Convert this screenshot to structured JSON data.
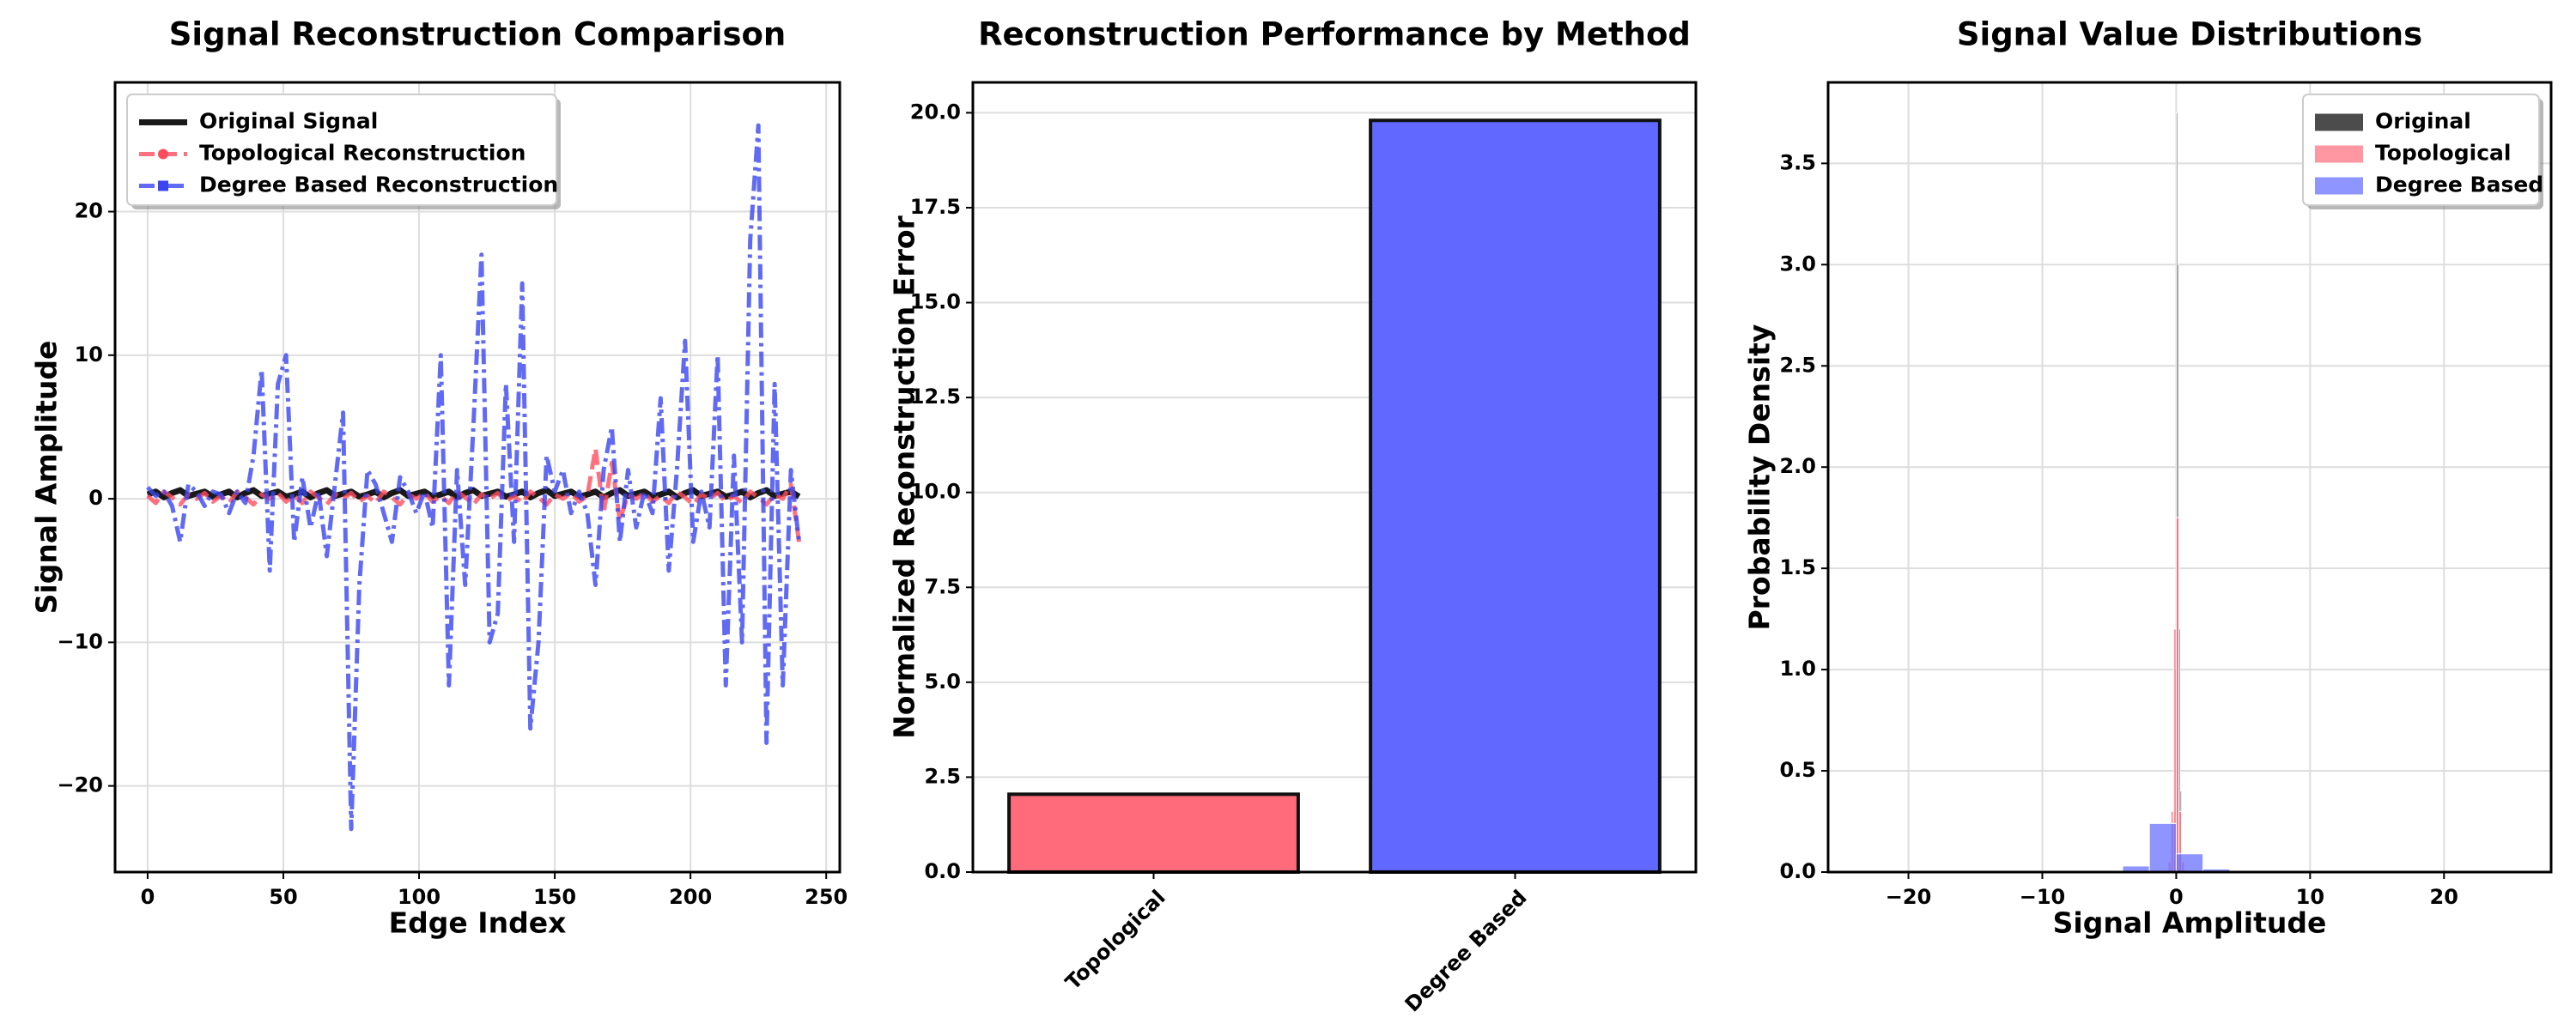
{
  "chart_data": [
    {
      "type": "line",
      "title": "Signal Reconstruction Comparison",
      "xlabel": "Edge Index",
      "ylabel": "Signal Amplitude",
      "x": [
        0,
        3,
        6,
        9,
        12,
        15,
        18,
        21,
        24,
        27,
        30,
        33,
        36,
        39,
        42,
        45,
        48,
        51,
        54,
        57,
        60,
        63,
        66,
        69,
        72,
        75,
        78,
        81,
        84,
        87,
        90,
        93,
        96,
        99,
        102,
        105,
        108,
        111,
        114,
        117,
        120,
        123,
        126,
        129,
        132,
        135,
        138,
        141,
        144,
        147,
        150,
        153,
        156,
        159,
        162,
        165,
        168,
        171,
        174,
        177,
        180,
        183,
        186,
        189,
        192,
        195,
        198,
        201,
        204,
        207,
        210,
        213,
        216,
        219,
        222,
        225,
        228,
        231,
        234,
        237,
        240
      ],
      "series": [
        {
          "name": "Original Signal",
          "color": "#000000",
          "alpha": 0.9,
          "width": 7,
          "dash": "solid",
          "marker": "none",
          "values": [
            0.3,
            0.5,
            0.1,
            0.4,
            0.6,
            0.2,
            0.35,
            0.5,
            0.15,
            0.3,
            0.5,
            0.1,
            0.4,
            0.6,
            0.2,
            0.35,
            0.5,
            0.15,
            0.3,
            0.5,
            0.1,
            0.4,
            0.6,
            0.2,
            0.35,
            0.5,
            0.15,
            0.3,
            0.5,
            0.1,
            0.4,
            0.6,
            0.2,
            0.35,
            0.5,
            0.15,
            0.3,
            0.5,
            0.1,
            0.4,
            0.6,
            0.2,
            0.35,
            0.5,
            0.15,
            0.3,
            0.5,
            0.1,
            0.4,
            0.6,
            0.2,
            0.35,
            0.5,
            0.15,
            0.3,
            0.5,
            0.1,
            0.4,
            0.6,
            0.2,
            0.35,
            0.5,
            0.15,
            0.3,
            0.5,
            0.1,
            0.4,
            0.6,
            0.2,
            0.35,
            0.5,
            0.15,
            0.3,
            0.5,
            0.1,
            0.4,
            0.6,
            0.2,
            0.35,
            0.5,
            0.15
          ]
        },
        {
          "name": "Topological Reconstruction",
          "color": "#ff4d5e",
          "alpha": 0.8,
          "width": 5,
          "dash": "dashed",
          "marker": "circle",
          "values": [
            0.2,
            -0.3,
            0.5,
            0.1,
            -0.4,
            0.3,
            0.0,
            0.4,
            -0.2,
            0.2,
            -0.3,
            0.5,
            0.1,
            -0.4,
            0.3,
            0.0,
            0.4,
            -0.2,
            0.2,
            -0.3,
            0.5,
            0.1,
            -0.4,
            0.3,
            0.0,
            0.4,
            -0.2,
            0.2,
            -0.3,
            0.5,
            0.1,
            -0.4,
            0.3,
            0.0,
            0.4,
            -0.2,
            0.2,
            -0.3,
            0.5,
            0.1,
            -0.4,
            0.3,
            0.0,
            0.4,
            -0.2,
            0.2,
            -0.3,
            0.5,
            0.1,
            -0.4,
            0.3,
            0.0,
            0.4,
            -0.2,
            0.2,
            3.5,
            -1,
            2.5,
            -1.5,
            0.3,
            0.0,
            0.4,
            -0.2,
            0.2,
            -0.3,
            0.5,
            0.1,
            -0.4,
            0.3,
            0.0,
            0.4,
            -0.2,
            0.2,
            -0.3,
            0.5,
            0.1,
            -0.4,
            0.3,
            0.0,
            1,
            -3
          ]
        },
        {
          "name": "Degree Based Reconstruction",
          "color": "#3a45f0",
          "alpha": 0.8,
          "width": 5,
          "dash": "dashdot",
          "marker": "square",
          "values": [
            0.8,
            0.2,
            0.5,
            -0.5,
            -3,
            1,
            0.5,
            -0.5,
            0.5,
            0.3,
            -1,
            0.5,
            -0.3,
            3,
            9,
            -5,
            8,
            10,
            -3,
            1.5,
            -2,
            0.5,
            -4,
            1,
            6,
            -23,
            -6,
            2,
            1,
            -1,
            -3,
            1.5,
            0.5,
            -1,
            0.5,
            -2,
            10,
            -13,
            2,
            -6,
            5,
            17,
            -10,
            -8,
            8,
            -3,
            15,
            -16,
            -10,
            3,
            0.5,
            2,
            -1,
            0.5,
            -1,
            -6,
            2,
            5,
            -3,
            2,
            -2,
            0.5,
            -1,
            7,
            -5,
            2,
            11,
            -3,
            0.5,
            -2,
            10,
            -13,
            3,
            -10,
            18,
            26,
            -17,
            8,
            -13,
            2,
            -3
          ]
        }
      ],
      "xlim": [
        -12,
        255
      ],
      "ylim": [
        -26,
        29
      ],
      "xticks": [
        0,
        50,
        100,
        150,
        200,
        250
      ],
      "yticks": [
        {
          "value": -20,
          "label": "−20"
        },
        {
          "value": -10,
          "label": "−10"
        },
        0,
        10,
        20
      ],
      "grid": "both",
      "legend": "upper left"
    },
    {
      "type": "bar",
      "title": "Reconstruction Performance by Method",
      "ylabel": "Normalized Reconstruction Error",
      "categories": [
        "Topological",
        "Degree Based"
      ],
      "values": [
        2.05,
        19.8
      ],
      "colors": [
        "#ff6b7a",
        "#6068ff"
      ],
      "ylim": [
        0,
        20.8
      ],
      "yticks": [
        {
          "value": 0,
          "label": "0.0"
        },
        2.5,
        {
          "value": 5,
          "label": "5.0"
        },
        7.5,
        {
          "value": 10,
          "label": "10.0"
        },
        12.5,
        {
          "value": 15,
          "label": "15.0"
        },
        17.5,
        {
          "value": 20,
          "label": "20.0"
        }
      ],
      "grid": "y"
    },
    {
      "type": "histogram",
      "title": "Signal Value Distributions",
      "xlabel": "Signal Amplitude",
      "ylabel": "Probability Density",
      "series": [
        {
          "name": "Original",
          "color": "#000000",
          "alpha": 0.7,
          "bins": [
            -0.2,
            -0.1,
            0,
            0.1,
            0.2,
            0.3,
            0.4
          ],
          "values": [
            0.3,
            1.0,
            3.75,
            3.0,
            1.2,
            0.4
          ]
        },
        {
          "name": "Topological",
          "color": "#ff6b7a",
          "alpha": 0.7,
          "bins": [
            -0.6,
            -0.4,
            -0.2,
            0,
            0.2,
            0.4,
            0.6
          ],
          "values": [
            0.05,
            0.3,
            1.2,
            1.75,
            0.3,
            0.05
          ]
        },
        {
          "name": "Degree Based",
          "color": "#6068ff",
          "alpha": 0.7,
          "bins": [
            -6,
            -4,
            -2,
            0,
            2,
            4,
            6
          ],
          "values": [
            0.005,
            0.03,
            0.24,
            0.09,
            0.015,
            0.005
          ]
        }
      ],
      "xlim": [
        -26,
        28
      ],
      "ylim": [
        0,
        3.9
      ],
      "xticks": [
        {
          "value": -20,
          "label": "−20"
        },
        {
          "value": -10,
          "label": "−10"
        },
        0,
        10,
        20
      ],
      "yticks": [
        {
          "value": 0,
          "label": "0.0"
        },
        0.5,
        {
          "value": 1,
          "label": "1.0"
        },
        1.5,
        {
          "value": 2,
          "label": "2.0"
        },
        2.5,
        {
          "value": 3,
          "label": "3.0"
        },
        3.5
      ],
      "grid": "both",
      "legend": "upper right"
    }
  ]
}
